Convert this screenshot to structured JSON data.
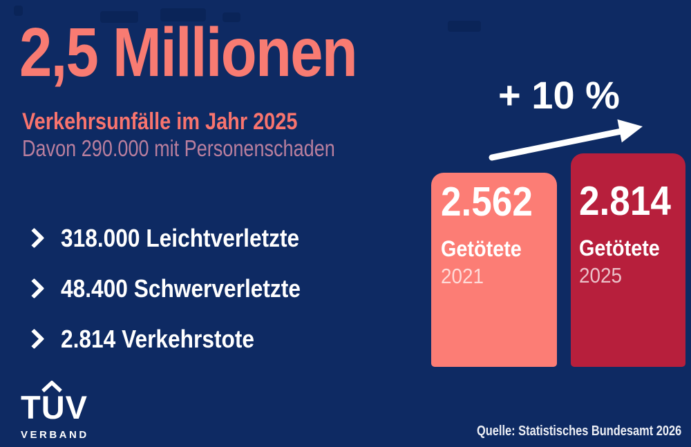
{
  "colors": {
    "background": "#0E2A63",
    "accent_coral": "#F87B72",
    "muted_pink": "#BA7F9E",
    "bar_2021": "#FC7D75",
    "bar_2025": "#B71F3C",
    "text_white": "#FFFFFF"
  },
  "header": {
    "headline": "2,5 Millionen",
    "subtitle": "Verkehrsunfälle im Jahr 2025",
    "detail": "Davon 290.000 mit Personenschaden"
  },
  "bullets": [
    {
      "label": "318.000 Leichtverletzte"
    },
    {
      "label": "48.400 Schwerverletzte"
    },
    {
      "label": "2.814 Verkehrstote"
    }
  ],
  "chart_data": {
    "type": "bar",
    "categories": [
      "2021",
      "2025"
    ],
    "values": [
      2562,
      2814
    ],
    "value_labels": [
      "2.562",
      "2.814"
    ],
    "series_label": "Getötete",
    "change_annotation": "+ 10 %",
    "bar_colors": [
      "#FC7D75",
      "#B71F3C"
    ],
    "ylim": [
      0,
      2814
    ],
    "grid": false,
    "legend_position": "none"
  },
  "icons": {
    "bullet_marker": "chevron-right",
    "trend": "arrow-up-right",
    "logo_umlaut": "roof"
  },
  "footer": {
    "logo_letters": {
      "t": "T",
      "u": "U",
      "v": "V"
    },
    "logo_subtitle": "VERBAND",
    "source": "Quelle: Statistisches Bundesamt 2026"
  }
}
